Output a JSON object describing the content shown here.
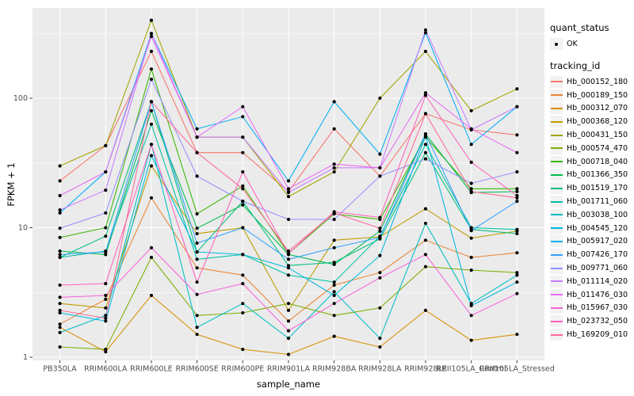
{
  "figure": {
    "background": "#FFFFFF",
    "panel_bg": "#EBEBEB",
    "grid_color": "#FFFFFF",
    "tick_color": "#333333",
    "tick_label_color": "#4D4D4D",
    "axis_title_color": "#000000"
  },
  "legend": {
    "quant_status_title": "quant_status",
    "quant_status_items": [
      {
        "label": "OK",
        "symbol": "point",
        "color": "#000000"
      }
    ],
    "tracking_id_title": "tracking_id",
    "key_bg": "#F2F2F2"
  },
  "chart_data": {
    "type": "line",
    "title": "",
    "xlabel": "sample_name",
    "ylabel": "FPKM + 1",
    "yscale": "log10",
    "ylim": [
      0.95,
      500
    ],
    "yticks": [
      1,
      10,
      100
    ],
    "ytick_labels": [
      "1",
      "10",
      "100"
    ],
    "yminor": [
      3.162,
      31.62,
      316.2
    ],
    "grid": true,
    "legend_position": "right",
    "point_color": "#000000",
    "categories": [
      "PB350LA",
      "RRIM600LA",
      "RRIM600LE",
      "RRIM600SE",
      "RRIM600PE",
      "RRIM901LA",
      "RRIM928BA",
      "RRIM928LA",
      "RRIM928LE",
      "RRII105LA_Control",
      "RRII105LA_Stressed"
    ],
    "series": [
      {
        "name": "Hb_000152_180",
        "color": "#F8766D",
        "values": [
          23,
          43,
          230,
          38,
          38,
          19,
          58,
          25,
          76,
          57,
          52
        ]
      },
      {
        "name": "Hb_000189_150",
        "color": "#EA8331",
        "values": [
          1.8,
          2.8,
          17,
          4.9,
          4.3,
          1.9,
          3.6,
          4.5,
          8.0,
          5.9,
          6.4
        ]
      },
      {
        "name": "Hb_000312_070",
        "color": "#D89000",
        "values": [
          1.7,
          1.1,
          3.0,
          1.5,
          1.15,
          1.05,
          1.45,
          1.2,
          2.3,
          1.35,
          1.5
        ]
      },
      {
        "name": "Hb_000368_120",
        "color": "#C09B00",
        "values": [
          2.6,
          2.4,
          30,
          9.0,
          10,
          2.3,
          8.0,
          8.5,
          14,
          8.3,
          9.4
        ]
      },
      {
        "name": "Hb_000431_150",
        "color": "#A3A500",
        "values": [
          30,
          43,
          400,
          50,
          50,
          17.4,
          27,
          100,
          230,
          80,
          118
        ]
      },
      {
        "name": "Hb_000574_470",
        "color": "#7CAE00",
        "values": [
          1.2,
          1.15,
          5.9,
          2.1,
          2.2,
          2.6,
          2.1,
          2.4,
          5.0,
          4.7,
          4.5
        ]
      },
      {
        "name": "Hb_000718_040",
        "color": "#39B600",
        "values": [
          8.4,
          10,
          168,
          12.8,
          21,
          6.3,
          12.8,
          11.6,
          50,
          20,
          20
        ]
      },
      {
        "name": "Hb_001366_350",
        "color": "#00BB4E",
        "values": [
          6.6,
          6.2,
          80,
          9.9,
          15,
          6.2,
          5.2,
          9.4,
          53,
          18.7,
          19
        ]
      },
      {
        "name": "Hb_001519_170",
        "color": "#00BF7D",
        "values": [
          5.9,
          8.6,
          94,
          6.5,
          16,
          5.1,
          5.4,
          8.2,
          38,
          9.7,
          9.0
        ]
      },
      {
        "name": "Hb_001711_060",
        "color": "#00C1A3",
        "values": [
          5.9,
          6.6,
          63,
          5.7,
          6.2,
          4.3,
          3.8,
          8.6,
          44,
          10,
          9.7
        ]
      },
      {
        "name": "Hb_003038_100",
        "color": "#00BFC4",
        "values": [
          1.55,
          2.1,
          44,
          1.7,
          2.6,
          1.4,
          3.2,
          1.4,
          10.8,
          2.6,
          4.3
        ]
      },
      {
        "name": "Hb_004545_120",
        "color": "#00BAE0",
        "values": [
          2.2,
          1.9,
          36,
          6.5,
          6.2,
          4.9,
          3.0,
          6.1,
          51,
          2.5,
          3.8
        ]
      },
      {
        "name": "Hb_005917_020",
        "color": "#00B0F6",
        "values": [
          13,
          27,
          316,
          58,
          72,
          23,
          94,
          37,
          320,
          44,
          86
        ]
      },
      {
        "name": "Hb_007426_170",
        "color": "#35A2FF",
        "values": [
          6.2,
          6.5,
          94,
          7.6,
          10,
          5.7,
          7.0,
          8.4,
          53,
          9.5,
          16
        ]
      },
      {
        "name": "Hb_009771_060",
        "color": "#9590FF",
        "values": [
          9.9,
          13,
          140,
          25,
          16,
          11.6,
          11.6,
          25,
          34,
          22,
          27
        ]
      },
      {
        "name": "Hb_011114_020",
        "color": "#C77CFF",
        "values": [
          13.7,
          19.5,
          316,
          50,
          50,
          18.7,
          29,
          29,
          336,
          57,
          86
        ]
      },
      {
        "name": "Hb_011476_030",
        "color": "#E76BF3",
        "values": [
          17.7,
          27,
          300,
          50,
          86,
          20,
          31,
          29,
          110,
          58,
          38
        ]
      },
      {
        "name": "Hb_015967_030",
        "color": "#FA62DB",
        "values": [
          2.9,
          3.0,
          7.0,
          3.05,
          3.7,
          1.6,
          2.6,
          4.1,
          6.2,
          2.1,
          3.1
        ]
      },
      {
        "name": "Hb_023732_050",
        "color": "#FF62BC",
        "values": [
          3.6,
          3.7,
          44,
          3.8,
          27,
          6.3,
          13.3,
          12,
          105,
          32,
          17.7
        ]
      },
      {
        "name": "Hb_169209_010",
        "color": "#FF6A98",
        "values": [
          2.3,
          2.0,
          94,
          38,
          20,
          6.6,
          13,
          9.9,
          76,
          19,
          17
        ]
      }
    ]
  }
}
